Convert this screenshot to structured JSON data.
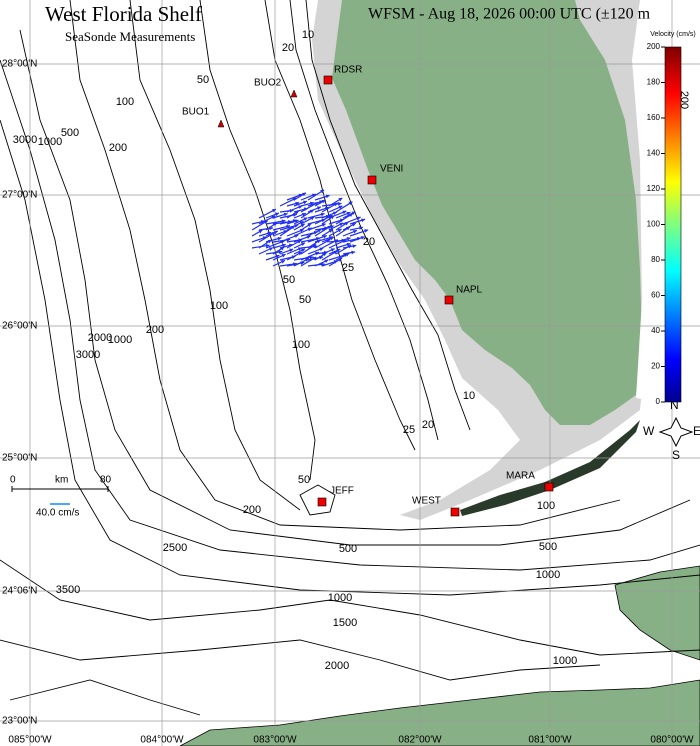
{
  "header": {
    "title": "West Florida Shelf",
    "subtitle": "SeaSonde Measurements",
    "timestamp": "WFSM - Aug 18, 2026 00:00 UTC (±120 m"
  },
  "latitudes": [
    "28°00'N",
    "27°00'N",
    "26°00'N",
    "25°00'N",
    "24°06'N",
    "23°00'N"
  ],
  "longitudes": [
    "085°00'W",
    "084°00'W",
    "083°00'W",
    "082°00'W",
    "081°00'W",
    "080°00'W"
  ],
  "stations": [
    "BUO2",
    "BUO1",
    "RDSR",
    "VENI",
    "NAPL",
    "JEFF",
    "WEST",
    "MARA"
  ],
  "contour_labels": [
    "20",
    "10",
    "50",
    "100",
    "200",
    "500",
    "1000",
    "3000",
    "100",
    "200",
    "50",
    "20",
    "25",
    "1000",
    "2000",
    "3000",
    "100",
    "50",
    "25",
    "20",
    "10",
    "50",
    "200",
    "100",
    "500",
    "500",
    "1000",
    "3500",
    "2500",
    "1000",
    "1500",
    "2000",
    "1000",
    "200"
  ],
  "colorbar": {
    "title": "Velocity (cm/s)",
    "ticks": [
      0,
      20,
      40,
      60,
      80,
      100,
      120,
      140,
      160,
      180,
      200
    ]
  },
  "scale": {
    "start": "0",
    "unit": "km",
    "end": "80",
    "vector": "40.0 cm/s"
  },
  "compass": {
    "n": "N",
    "e": "E",
    "s": "S",
    "w": "W"
  }
}
